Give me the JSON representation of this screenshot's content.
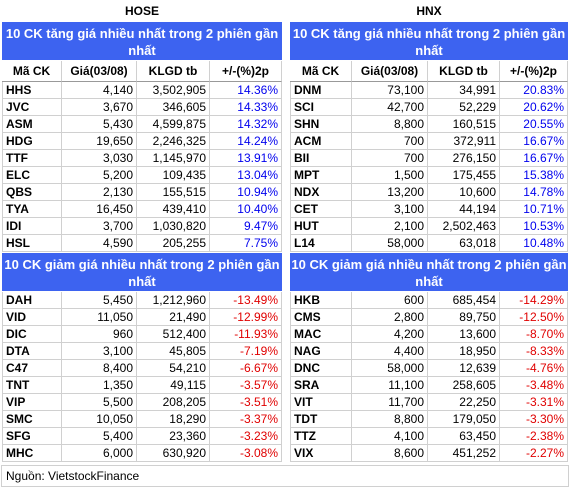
{
  "markets": [
    {
      "name": "HOSE",
      "gainers": {
        "title": "10 CK tăng giá nhiều nhất trong 2 phiên gần nhất",
        "columns": [
          "Mã CK",
          "Giá(03/08)",
          "KLGD tb",
          "+/-(%)2p"
        ],
        "change_color": "#0000ee",
        "rows": [
          [
            "HHS",
            "4,140",
            "3,502,905",
            "14.36%"
          ],
          [
            "JVC",
            "3,670",
            "346,605",
            "14.33%"
          ],
          [
            "ASM",
            "5,430",
            "4,599,875",
            "14.32%"
          ],
          [
            "HDG",
            "19,650",
            "2,246,325",
            "14.24%"
          ],
          [
            "TTF",
            "3,030",
            "1,145,970",
            "13.91%"
          ],
          [
            "ELC",
            "5,200",
            "109,435",
            "13.04%"
          ],
          [
            "QBS",
            "2,130",
            "155,515",
            "10.94%"
          ],
          [
            "TYA",
            "16,450",
            "439,410",
            "10.40%"
          ],
          [
            "IDI",
            "3,700",
            "1,030,820",
            "9.47%"
          ],
          [
            "HSL",
            "4,590",
            "205,255",
            "7.75%"
          ]
        ]
      },
      "losers": {
        "title": "10 CK giảm giá nhiều nhất trong 2 phiên gần nhất",
        "change_color": "#e00000",
        "rows": [
          [
            "DAH",
            "5,450",
            "1,212,960",
            "-13.49%"
          ],
          [
            "VID",
            "11,050",
            "21,490",
            "-12.99%"
          ],
          [
            "DIC",
            "960",
            "512,400",
            "-11.93%"
          ],
          [
            "DTA",
            "3,100",
            "45,805",
            "-7.19%"
          ],
          [
            "C47",
            "8,400",
            "54,210",
            "-6.67%"
          ],
          [
            "TNT",
            "1,350",
            "49,115",
            "-3.57%"
          ],
          [
            "VIP",
            "5,500",
            "208,205",
            "-3.51%"
          ],
          [
            "SMC",
            "10,050",
            "18,290",
            "-3.37%"
          ],
          [
            "SFG",
            "5,400",
            "23,360",
            "-3.23%"
          ],
          [
            "MHC",
            "6,000",
            "630,920",
            "-3.08%"
          ]
        ]
      }
    },
    {
      "name": "HNX",
      "gainers": {
        "title": "10 CK tăng giá nhiều nhất trong 2 phiên gần nhất",
        "columns": [
          "Mã CK",
          "Giá(03/08)",
          "KLGD tb",
          "+/-(%)2p"
        ],
        "change_color": "#0000ee",
        "rows": [
          [
            "DNM",
            "73,100",
            "34,991",
            "20.83%"
          ],
          [
            "SCI",
            "42,700",
            "52,229",
            "20.62%"
          ],
          [
            "SHN",
            "8,800",
            "160,515",
            "20.55%"
          ],
          [
            "ACM",
            "700",
            "372,911",
            "16.67%"
          ],
          [
            "BII",
            "700",
            "276,150",
            "16.67%"
          ],
          [
            "MPT",
            "1,500",
            "175,455",
            "15.38%"
          ],
          [
            "NDX",
            "13,200",
            "10,600",
            "14.78%"
          ],
          [
            "CET",
            "3,100",
            "44,194",
            "10.71%"
          ],
          [
            "HUT",
            "2,100",
            "2,502,463",
            "10.53%"
          ],
          [
            "L14",
            "58,000",
            "63,018",
            "10.48%"
          ]
        ]
      },
      "losers": {
        "title": "10 CK giảm giá nhiều nhất trong 2 phiên gần nhất",
        "change_color": "#e00000",
        "rows": [
          [
            "HKB",
            "600",
            "685,454",
            "-14.29%"
          ],
          [
            "CMS",
            "2,800",
            "89,750",
            "-12.50%"
          ],
          [
            "MAC",
            "4,200",
            "13,600",
            "-8.70%"
          ],
          [
            "NAG",
            "4,400",
            "18,950",
            "-8.33%"
          ],
          [
            "DNC",
            "58,000",
            "12,639",
            "-4.76%"
          ],
          [
            "SRA",
            "11,100",
            "258,605",
            "-3.48%"
          ],
          [
            "VIT",
            "11,700",
            "22,250",
            "-3.31%"
          ],
          [
            "TDT",
            "8,800",
            "179,050",
            "-3.30%"
          ],
          [
            "TTZ",
            "4,100",
            "63,450",
            "-2.38%"
          ],
          [
            "VIX",
            "8,600",
            "451,252",
            "-2.27%"
          ]
        ]
      }
    }
  ],
  "source": "Nguồn: VietstockFinance"
}
